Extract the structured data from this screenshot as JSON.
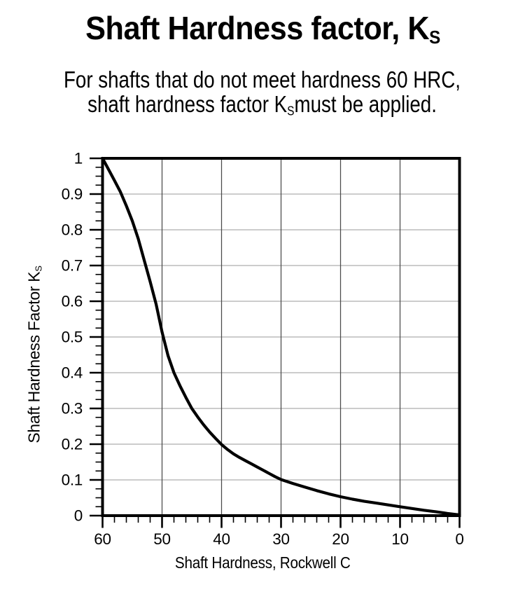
{
  "figure": {
    "title": {
      "main": "Shaft Hardness factor, K",
      "sub": "S"
    },
    "subtitle": {
      "line1": "For shafts that do not meet hardness 60 HRC,",
      "line2_pre": "shaft hardness factor K",
      "line2_sub": "S",
      "line2_post": "must be applied."
    }
  },
  "chart_data": {
    "type": "line",
    "title": "Shaft Hardness factor, KS",
    "xlabel": "Shaft Hardness, Rockwell C",
    "ylabel": "Shaft Hardness Factor KS",
    "grid": true,
    "legend": false,
    "x_axis": {
      "label": "Shaft Hardness, Rockwell C",
      "min": 0,
      "max": 60,
      "reversed": true,
      "major_ticks": [
        60,
        50,
        40,
        30,
        20,
        10,
        0
      ],
      "tick_labels": [
        "60",
        "50",
        "40",
        "30",
        "20",
        "10",
        "0"
      ],
      "minor_tick_step": 2
    },
    "y_axis": {
      "label_pre": "Shaft Hardness Factor K",
      "label_sub": "S",
      "min": 0,
      "max": 1,
      "major_ticks": [
        1,
        0.9,
        0.8,
        0.7,
        0.6,
        0.5,
        0.4,
        0.3,
        0.2,
        0.1,
        0
      ],
      "tick_labels": [
        "1",
        "0.9",
        "0.8",
        "0.7",
        "0.6",
        "0.5",
        "0.4",
        "0.3",
        "0.2",
        "0.1",
        "0"
      ],
      "minor_tick_step": 0.025
    },
    "series": [
      {
        "name": "shaft-hardness-factor-curve",
        "x": [
          60,
          59,
          58,
          57,
          56,
          55,
          54,
          53,
          52,
          51,
          50,
          49,
          48,
          47,
          46,
          45,
          44,
          43,
          42,
          41,
          40,
          39,
          38,
          37,
          36,
          35,
          34,
          33,
          32,
          31,
          30,
          28,
          26,
          24,
          22,
          20,
          18,
          16,
          14,
          12,
          10,
          8,
          6,
          4,
          2,
          0
        ],
        "y": [
          1.0,
          0.969,
          0.938,
          0.906,
          0.867,
          0.825,
          0.775,
          0.715,
          0.655,
          0.592,
          0.514,
          0.448,
          0.4,
          0.364,
          0.331,
          0.3,
          0.276,
          0.254,
          0.234,
          0.216,
          0.199,
          0.185,
          0.173,
          0.163,
          0.154,
          0.145,
          0.136,
          0.127,
          0.118,
          0.109,
          0.101,
          0.09,
          0.08,
          0.07,
          0.061,
          0.053,
          0.046,
          0.04,
          0.035,
          0.03,
          0.025,
          0.02,
          0.015,
          0.011,
          0.006,
          0.002
        ]
      }
    ],
    "key_points": [
      [
        60,
        1.0
      ],
      [
        56.8,
        0.9
      ],
      [
        54.4,
        0.8
      ],
      [
        52.8,
        0.7
      ],
      [
        51.2,
        0.6
      ],
      [
        49.9,
        0.5
      ],
      [
        48,
        0.4
      ],
      [
        45,
        0.3
      ],
      [
        40,
        0.2
      ],
      [
        30,
        0.1
      ],
      [
        20,
        0.05
      ],
      [
        10,
        0.025
      ],
      [
        0,
        0
      ]
    ],
    "colors": {
      "curve": "#000000",
      "frame": "#000000",
      "grid_horizontal": "#9a9a9a",
      "grid_vertical": "#4a4a4a",
      "text": "#000000",
      "background": "#ffffff"
    }
  }
}
